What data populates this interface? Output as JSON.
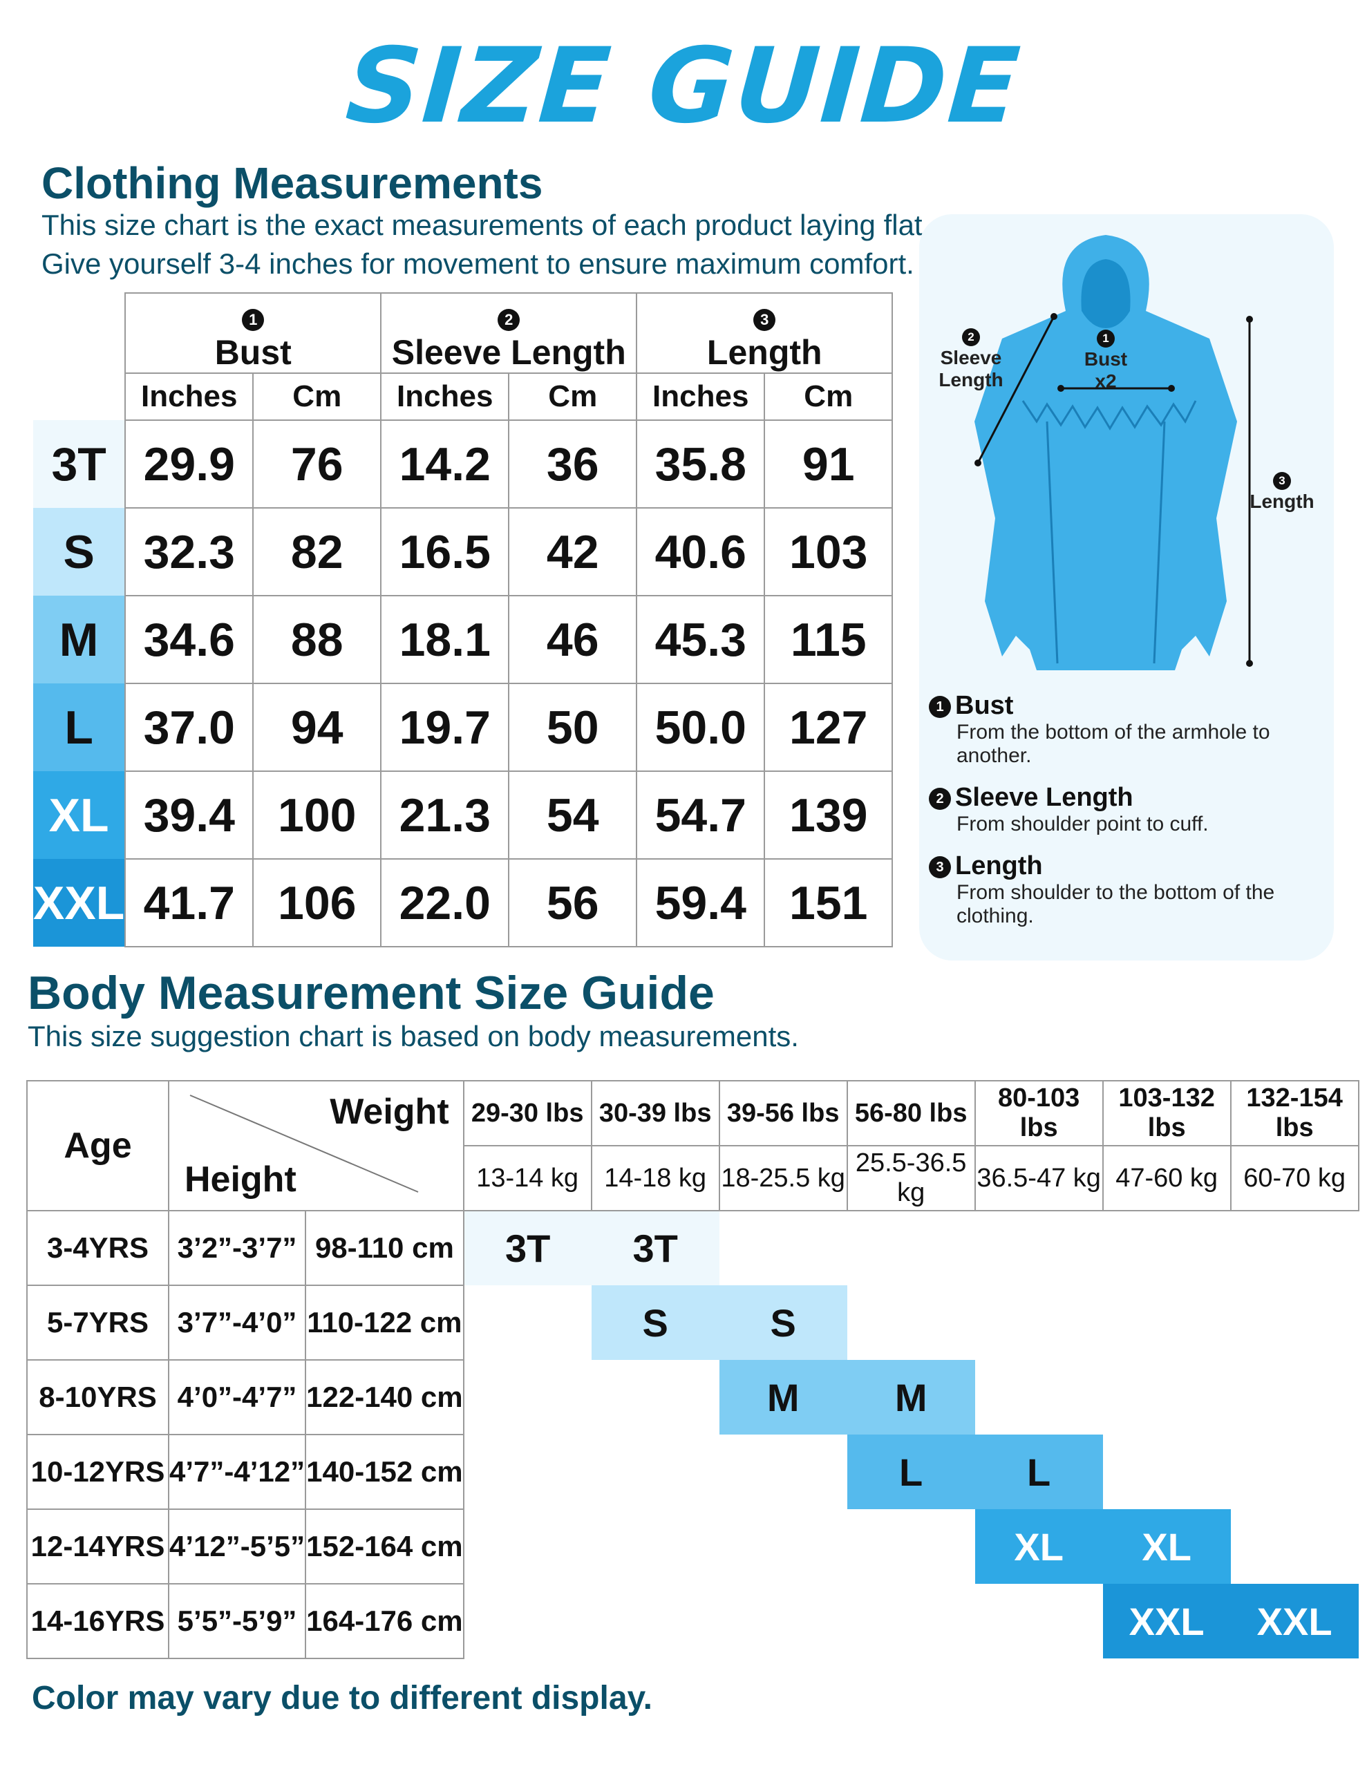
{
  "title": "SIZE GUIDE",
  "clothing": {
    "heading": "Clothing Measurements",
    "sub1": "This size chart is the exact measurements of each product laying flat.",
    "sub2": "Give yourself 3-4 inches for movement to ensure maximum comfort.",
    "groups": [
      {
        "num": "1",
        "label": "Bust"
      },
      {
        "num": "2",
        "label": "Sleeve Length"
      },
      {
        "num": "3",
        "label": "Length"
      }
    ],
    "units": [
      "Inches",
      "Cm",
      "Inches",
      "Cm",
      "Inches",
      "Cm"
    ],
    "rows": [
      {
        "size": "3T",
        "color": "#eef8fd",
        "text_color": "#111111",
        "values": [
          "29.9",
          "76",
          "14.2",
          "36",
          "35.8",
          "91"
        ]
      },
      {
        "size": "S",
        "color": "#bfe7fb",
        "text_color": "#111111",
        "values": [
          "32.3",
          "82",
          "16.5",
          "42",
          "40.6",
          "103"
        ]
      },
      {
        "size": "M",
        "color": "#7fcdf3",
        "text_color": "#111111",
        "values": [
          "34.6",
          "88",
          "18.1",
          "46",
          "45.3",
          "115"
        ]
      },
      {
        "size": "L",
        "color": "#55baed",
        "text_color": "#111111",
        "values": [
          "37.0",
          "94",
          "19.7",
          "50",
          "50.0",
          "127"
        ]
      },
      {
        "size": "XL",
        "color": "#2fa9e6",
        "text_color": "#ffffff",
        "values": [
          "39.4",
          "100",
          "21.3",
          "54",
          "54.7",
          "139"
        ]
      },
      {
        "size": "XXL",
        "color": "#1b95d8",
        "text_color": "#ffffff",
        "values": [
          "41.7",
          "106",
          "22.0",
          "56",
          "59.4",
          "151"
        ]
      }
    ]
  },
  "diagram": {
    "label_sleeve_num": "2",
    "label_sleeve_1": "Sleeve",
    "label_sleeve_2": "Length",
    "label_bust_num": "1",
    "label_bust_1": "Bust",
    "label_bust_2": "x2",
    "label_length_num": "3",
    "label_length": "Length",
    "legend": [
      {
        "num": "1",
        "title": "Bust",
        "desc": "From the bottom of the armhole to another."
      },
      {
        "num": "2",
        "title": "Sleeve Length",
        "desc": "From shoulder point to cuff."
      },
      {
        "num": "3",
        "title": "Length",
        "desc": "From shoulder to the bottom of the clothing."
      }
    ]
  },
  "body": {
    "heading": "Body Measurement Size Guide",
    "sub": "This size suggestion chart is based on body measurements.",
    "age_label": "Age",
    "weight_label": "Weight",
    "height_label": "Height",
    "weights_lbs": [
      "29-30 lbs",
      "30-39 lbs",
      "39-56 lbs",
      "56-80 lbs",
      "80-103 lbs",
      "103-132 lbs",
      "132-154 lbs"
    ],
    "weights_kg": [
      "13-14 kg",
      "14-18 kg",
      "18-25.5 kg",
      "25.5-36.5 kg",
      "36.5-47 kg",
      "47-60 kg",
      "60-70 kg"
    ],
    "rows": [
      {
        "age": "3-4YRS",
        "height_ft": "3’2”-3’7”",
        "height_cm": "98-110 cm",
        "size": "3T",
        "start": 0,
        "color": "#eef8fd",
        "text_color": "#111111"
      },
      {
        "age": "5-7YRS",
        "height_ft": "3’7”-4’0”",
        "height_cm": "110-122 cm",
        "size": "S",
        "start": 1,
        "color": "#bfe7fb",
        "text_color": "#111111"
      },
      {
        "age": "8-10YRS",
        "height_ft": "4’0”-4’7”",
        "height_cm": "122-140 cm",
        "size": "M",
        "start": 2,
        "color": "#7fcdf3",
        "text_color": "#111111"
      },
      {
        "age": "10-12YRS",
        "height_ft": "4’7”-4’12”",
        "height_cm": "140-152 cm",
        "size": "L",
        "start": 3,
        "color": "#55baed",
        "text_color": "#111111"
      },
      {
        "age": "12-14YRS",
        "height_ft": "4’12”-5’5”",
        "height_cm": "152-164 cm",
        "size": "XL",
        "start": 4,
        "color": "#2fa9e6",
        "text_color": "#ffffff"
      },
      {
        "age": "14-16YRS",
        "height_ft": "5’5”-5’9”",
        "height_cm": "164-176 cm",
        "size": "XXL",
        "start": 5,
        "color": "#1b95d8",
        "text_color": "#ffffff"
      }
    ]
  },
  "footer": "Color may vary due to different display.",
  "colors": {
    "title": "#1ba3dc",
    "heading": "#0b4f68",
    "robe": "#3fb0e8"
  }
}
